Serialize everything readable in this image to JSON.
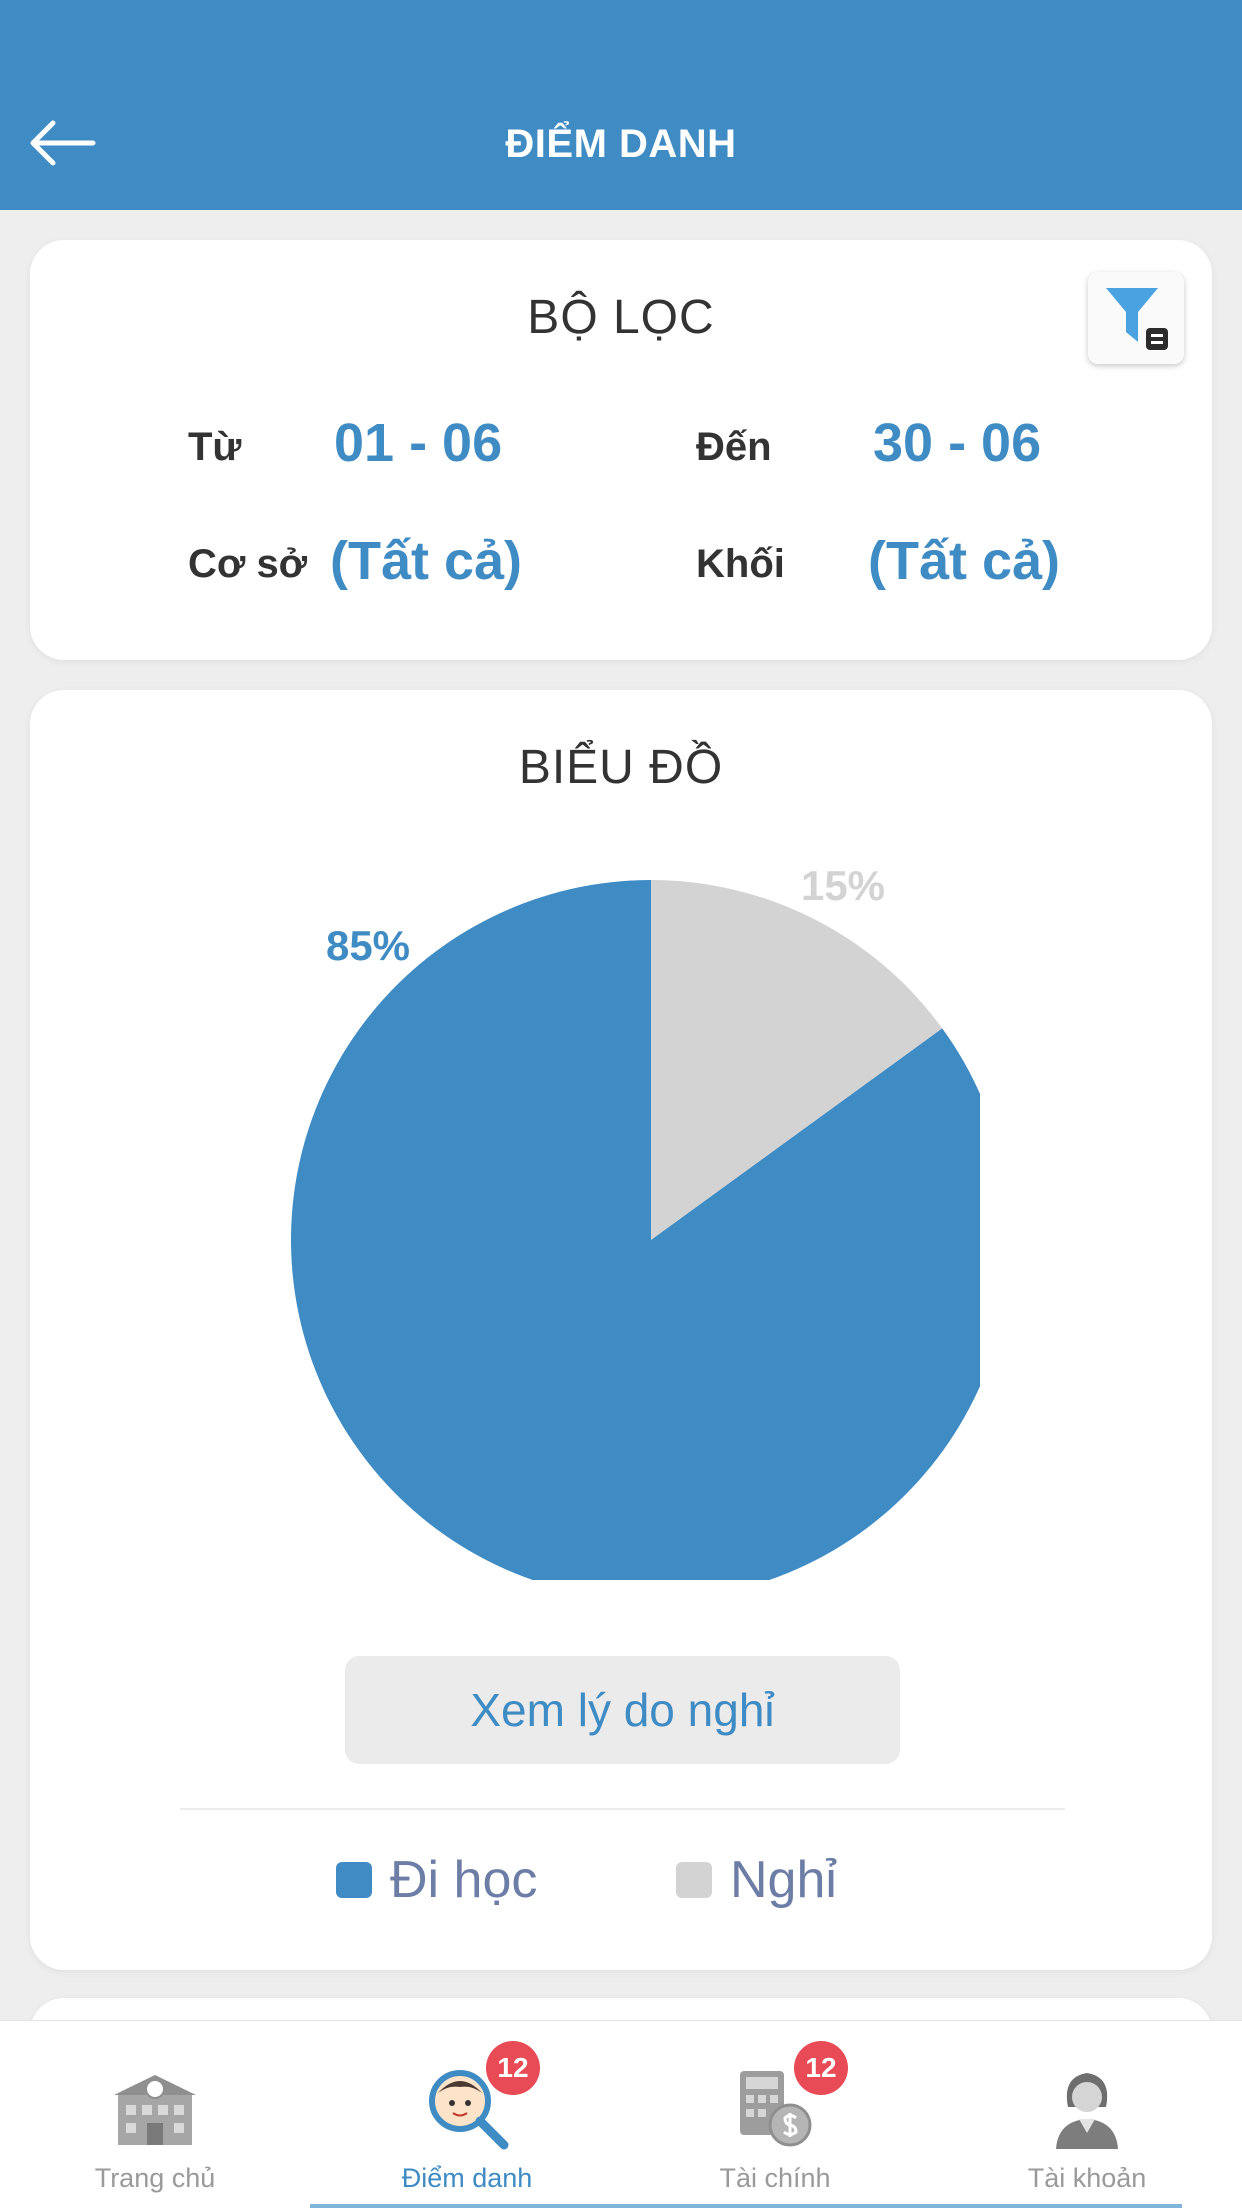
{
  "header": {
    "title": "ĐIỂM DANH",
    "bg_color": "#3f8bc4"
  },
  "filter": {
    "title": "BỘ LỌC",
    "from_label": "Từ",
    "from_value": "01 - 06",
    "to_label": "Đến",
    "to_value": "30 - 06",
    "campus_label": "Cơ sở",
    "campus_value": "(Tất cả)",
    "grade_label": "Khối",
    "grade_value": "(Tất cả)",
    "filter_icon": "filter-funnel-icon"
  },
  "chart_section": {
    "title": "BIỂU ĐỒ",
    "reason_button": "Xem lý do nghỉ"
  },
  "chart_data": {
    "type": "pie",
    "slices": [
      {
        "label": "Đi học",
        "value": 85,
        "display": "85%",
        "color": "#3f8bc4"
      },
      {
        "label": "Nghỉ",
        "value": 15,
        "display": "15%",
        "color": "#d3d3d3"
      }
    ],
    "legend_placement": "bottom"
  },
  "tabbar": {
    "tabs": [
      {
        "label": "Trang chủ",
        "icon": "school-building-icon",
        "active": false
      },
      {
        "label": "Điểm danh",
        "icon": "magnifier-child-icon",
        "active": true,
        "badge": "12"
      },
      {
        "label": "Tài chính",
        "icon": "calculator-coin-icon",
        "active": false,
        "badge": "12"
      },
      {
        "label": "Tài khoản",
        "icon": "user-avatar-icon",
        "active": false
      }
    ]
  }
}
